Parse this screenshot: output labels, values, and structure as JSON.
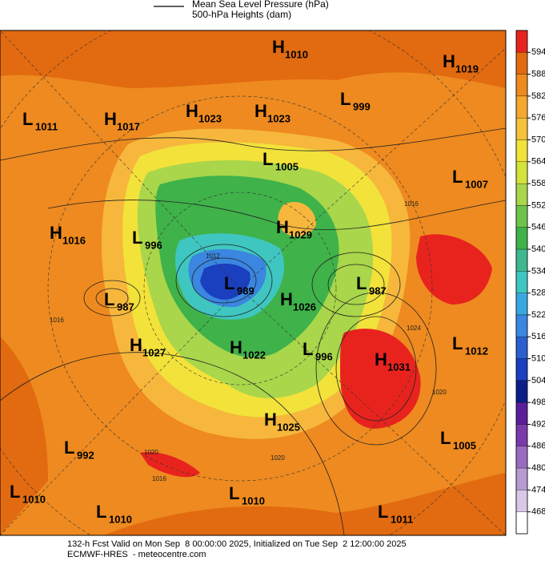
{
  "legend": {
    "mslp": "Mean Sea Level Pressure (hPa)",
    "heights": "500-hPa Heights (dam)"
  },
  "centers": [
    {
      "letter": "H",
      "value": 1010
    },
    {
      "letter": "H",
      "value": 1019
    },
    {
      "letter": "L",
      "value": 999
    },
    {
      "letter": "L",
      "value": 1011
    },
    {
      "letter": "H",
      "value": 1017
    },
    {
      "letter": "H",
      "value": 1023
    },
    {
      "letter": "H",
      "value": 1023
    },
    {
      "letter": "L",
      "value": 1005
    },
    {
      "letter": "L",
      "value": 1007
    },
    {
      "letter": "H",
      "value": 1016
    },
    {
      "letter": "L",
      "value": 996
    },
    {
      "letter": "H",
      "value": 1029
    },
    {
      "letter": "L",
      "value": 989
    },
    {
      "letter": "L",
      "value": 987
    },
    {
      "letter": "L",
      "value": 987
    },
    {
      "letter": "H",
      "value": 1026
    },
    {
      "letter": "H",
      "value": 1027
    },
    {
      "letter": "H",
      "value": 1022
    },
    {
      "letter": "L",
      "value": 996
    },
    {
      "letter": "L",
      "value": 1012
    },
    {
      "letter": "H",
      "value": 1031
    },
    {
      "letter": "H",
      "value": 1025
    },
    {
      "letter": "L",
      "value": 1005
    },
    {
      "letter": "L",
      "value": 992
    },
    {
      "letter": "L",
      "value": 1010
    },
    {
      "letter": "L",
      "value": 1010
    },
    {
      "letter": "L",
      "value": 1010
    },
    {
      "letter": "L",
      "value": 1011
    }
  ],
  "contour_labels": [
    1016,
    1012,
    1016,
    1024,
    1020,
    1020,
    1016,
    1020
  ],
  "colorbar": {
    "ticks": [
      594,
      588,
      582,
      576,
      570,
      564,
      558,
      552,
      546,
      540,
      534,
      528,
      522,
      516,
      510,
      504,
      498,
      492,
      486,
      480,
      474,
      468
    ],
    "colors": [
      "#e8231e",
      "#e26a10",
      "#ee8a1f",
      "#f6a82e",
      "#f6c23a",
      "#f2e23a",
      "#d4e23c",
      "#a9d64a",
      "#6cc44a",
      "#3fb24a",
      "#3fb890",
      "#3fc6c0",
      "#3aa8e0",
      "#3a86e0",
      "#2a5fd0",
      "#1a3fbf",
      "#0a1e8a",
      "#5a1e9a",
      "#7a3aaa",
      "#9a6ac0",
      "#b89ad2",
      "#d8c8e6",
      "#ffffff"
    ]
  },
  "footer": {
    "forecast": "132-h Fcst Valid on Mon Sep  8 00:00:00 2025, Initialized on Tue Sep  2 12:00:00 2025",
    "source": "ECMWF-HRES  - meteocentre.com"
  }
}
